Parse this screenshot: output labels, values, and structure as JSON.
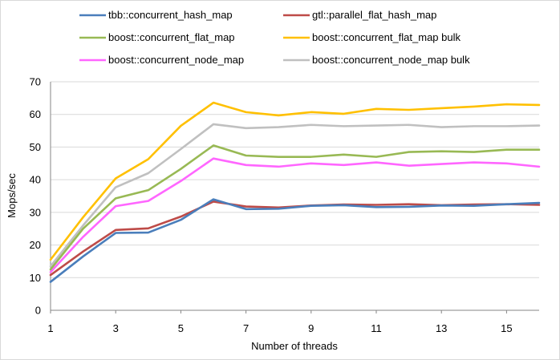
{
  "chart_data": {
    "type": "line",
    "title": "",
    "xlabel": "Number of threads",
    "ylabel": "Mops/sec",
    "xlim": [
      1,
      16
    ],
    "ylim": [
      0,
      70
    ],
    "x": [
      1,
      2,
      3,
      4,
      5,
      6,
      7,
      8,
      9,
      10,
      11,
      12,
      13,
      14,
      15,
      16
    ],
    "x_ticks": [
      1,
      3,
      5,
      7,
      9,
      11,
      13,
      15
    ],
    "y_ticks": [
      0,
      10,
      20,
      30,
      40,
      50,
      60,
      70
    ],
    "grid": "horizontal",
    "legend_position": "top",
    "series": [
      {
        "name": "tbb::concurrent_hash_map",
        "color": "#4a7ebb",
        "values": [
          8.7,
          16.5,
          23.7,
          23.8,
          27.7,
          34.0,
          31.0,
          31.1,
          32.0,
          32.2,
          31.6,
          31.7,
          32.1,
          32.0,
          32.5,
          32.9
        ]
      },
      {
        "name": "gtl::parallel_flat_hash_map",
        "color": "#be4b48",
        "values": [
          10.8,
          18.0,
          24.6,
          25.1,
          28.7,
          33.3,
          31.8,
          31.5,
          32.1,
          32.4,
          32.3,
          32.5,
          32.2,
          32.4,
          32.5,
          32.3
        ]
      },
      {
        "name": "boost::concurrent_flat_map",
        "color": "#98b954",
        "values": [
          12.5,
          25.0,
          34.3,
          36.8,
          43.3,
          50.5,
          47.4,
          47.0,
          47.0,
          47.7,
          47.0,
          48.5,
          48.7,
          48.5,
          49.2,
          49.2
        ]
      },
      {
        "name": "boost::concurrent_flat_map bulk",
        "color": "#ffc000",
        "values": [
          15.5,
          28.5,
          40.4,
          46.3,
          56.5,
          63.6,
          60.7,
          59.7,
          60.7,
          60.2,
          61.7,
          61.4,
          61.9,
          62.4,
          63.1,
          62.9
        ]
      },
      {
        "name": "boost::concurrent_node_map",
        "color": "#ff66ff",
        "values": [
          11.7,
          22.5,
          31.9,
          33.5,
          39.6,
          46.5,
          44.5,
          44.0,
          45.0,
          44.5,
          45.3,
          44.3,
          44.8,
          45.3,
          45.0,
          44.0
        ]
      },
      {
        "name": "boost::concurrent_node_map bulk",
        "color": "#c0c0c0",
        "values": [
          13.5,
          26.0,
          37.7,
          42.0,
          49.4,
          57.0,
          55.8,
          56.1,
          56.8,
          56.4,
          56.6,
          56.8,
          56.1,
          56.4,
          56.4,
          56.6
        ]
      }
    ]
  }
}
